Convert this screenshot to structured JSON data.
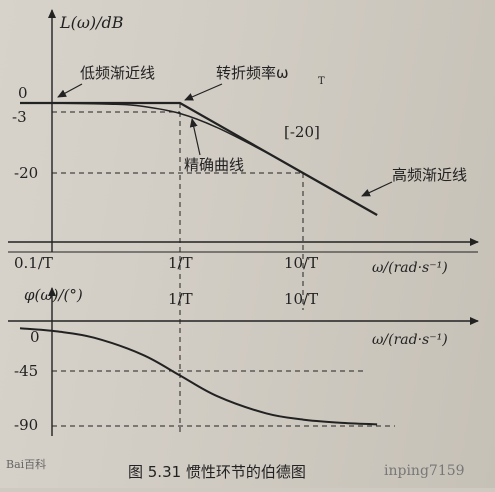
{
  "chart_data": [
    {
      "type": "line",
      "name": "magnitude",
      "ylabel": "L(ω)/dB",
      "xlabel": "ω/(rad·s⁻¹)",
      "x_ticks": [
        "0.1/T",
        "1/T",
        "10/T"
      ],
      "y_ticks": [
        "0",
        "-3",
        "-20"
      ],
      "annotations": {
        "low_asym": "低频渐近线",
        "corner": "转折频率ω",
        "corner_sub": "T",
        "exact": "精确曲线",
        "slope": "[-20]",
        "high_asym": "高频渐近线"
      },
      "series": [
        {
          "x": [
            0.05,
            0.1,
            0.3,
            0.5,
            1,
            2,
            5,
            10,
            20,
            40
          ],
          "values": [
            0,
            -0.04,
            -0.37,
            -0.97,
            -3,
            -7,
            -14.1,
            -20,
            -26,
            -32
          ]
        },
        {
          "x": [
            0.05,
            1,
            10,
            40
          ],
          "values": [
            0,
            0,
            -20,
            -32
          ]
        }
      ],
      "xscale": "log",
      "xlim": [
        0.05,
        40
      ]
    },
    {
      "type": "line",
      "name": "phase",
      "ylabel": "φ(ω)/(°)",
      "xlabel": "ω/(rad·s⁻¹)",
      "x_ticks": [
        "1/T",
        "10/T"
      ],
      "y_ticks": [
        "0",
        "-45",
        "-90"
      ],
      "series": [
        {
          "x": [
            0.05,
            0.1,
            0.2,
            0.5,
            1,
            2,
            5,
            10,
            20,
            40
          ],
          "values": [
            -2.9,
            -5.7,
            -11.3,
            -26.6,
            -45,
            -63.4,
            -78.7,
            -84.3,
            -87.1,
            -88.6
          ]
        }
      ],
      "xscale": "log",
      "xlim": [
        0.05,
        40
      ]
    }
  ],
  "caption": "图 5.31   惯性环节的伯德图",
  "watermark": "Bai百科",
  "watermark2": "inping7159"
}
